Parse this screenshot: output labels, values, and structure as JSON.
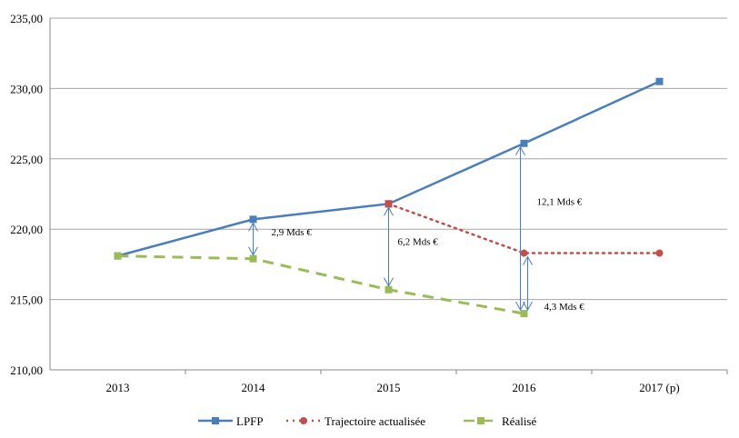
{
  "chart_data": {
    "type": "line",
    "title": "",
    "xlabel": "",
    "ylabel": "",
    "categories": [
      "2013",
      "2014",
      "2015",
      "2016",
      "2017 (p)"
    ],
    "ylim": [
      210,
      235
    ],
    "yticks": [
      "210,00",
      "215,00",
      "220,00",
      "225,00",
      "230,00",
      "235,00"
    ],
    "grid": true,
    "legend_position": "bottom",
    "series": [
      {
        "name": "LPFP",
        "color": "#4a7ebb",
        "style": "solid",
        "marker": "square",
        "values": [
          218.1,
          220.7,
          221.8,
          226.1,
          230.5
        ]
      },
      {
        "name": "Trajectoire actualisée",
        "color": "#c0504d",
        "style": "dotted",
        "marker": "circle",
        "values": [
          null,
          null,
          221.8,
          218.3,
          218.3
        ]
      },
      {
        "name": "Réalisé",
        "color": "#9bbb59",
        "style": "dashed",
        "marker": "square",
        "values": [
          218.1,
          217.9,
          215.7,
          214.0,
          null
        ]
      }
    ],
    "annotations": [
      {
        "text": "2,9 Mds €",
        "category": "2014",
        "from": 220.7,
        "to": 217.9
      },
      {
        "text": "6,2 Mds €",
        "category": "2015",
        "from": 221.8,
        "to": 215.7
      },
      {
        "text": "12,1 Mds €",
        "category": "2016",
        "from": 226.1,
        "to": 214.0
      },
      {
        "text": "4,3 Mds €",
        "category": "2016",
        "from": 218.3,
        "to": 214.0
      }
    ]
  }
}
